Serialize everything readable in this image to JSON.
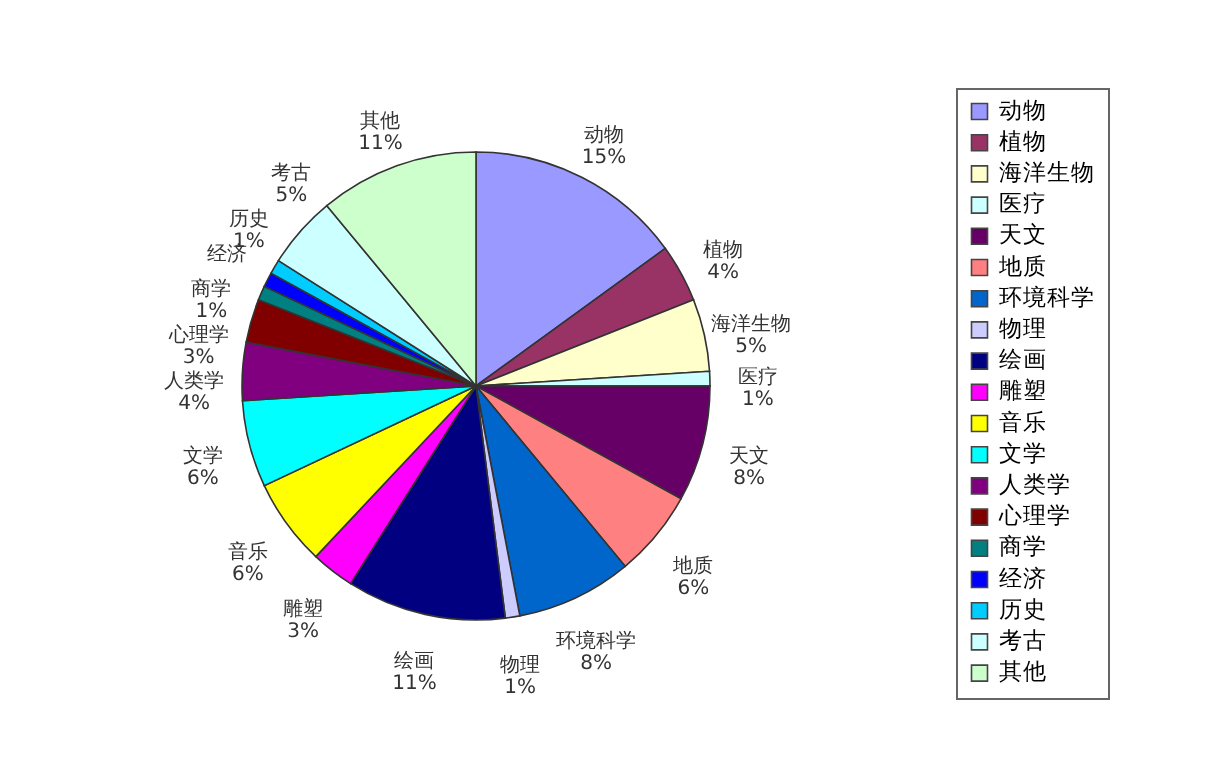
{
  "chart_data": {
    "type": "pie",
    "categories": [
      "动物",
      "植物",
      "海洋生物",
      "医疗",
      "天文",
      "地质",
      "环境科学",
      "物理",
      "绘画",
      "雕塑",
      "音乐",
      "文学",
      "人类学",
      "心理学",
      "商学",
      "经济",
      "历史",
      "考古",
      "其他"
    ],
    "values": [
      15,
      4,
      5,
      1,
      8,
      6,
      8,
      1,
      11,
      3,
      6,
      6,
      4,
      3,
      1,
      1,
      1,
      5,
      11
    ],
    "value_labels": [
      "15%",
      "4%",
      "5%",
      "1%",
      "8%",
      "6%",
      "8%",
      "1%",
      "11%",
      "3%",
      "6%",
      "6%",
      "4%",
      "3%",
      "1%",
      null,
      "1%",
      "5%",
      "11%"
    ],
    "colors": [
      "#9999ff",
      "#993366",
      "#ffffcc",
      "#ccffff",
      "#660066",
      "#ff8080",
      "#0066cc",
      "#ccccff",
      "#000080",
      "#ff00ff",
      "#ffff00",
      "#00ffff",
      "#800080",
      "#800000",
      "#008080",
      "#0000ff",
      "#00ccff",
      "#ccffff",
      "#ccffcc"
    ],
    "legend": "right"
  }
}
